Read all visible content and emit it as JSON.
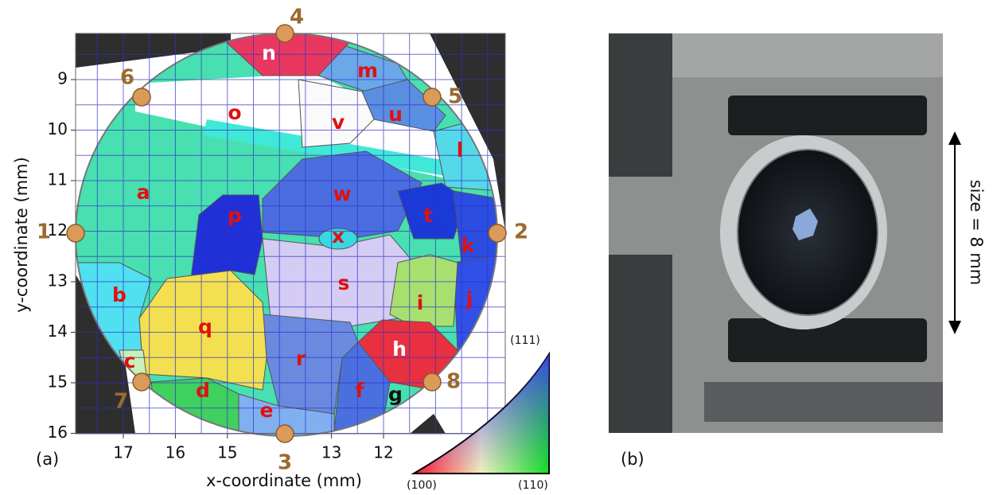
{
  "panel_a": {
    "label": "(a)",
    "y_axis_label": "y-coordinate (mm)",
    "x_axis_label": "x-coordinate (mm)",
    "yticks": [
      9,
      10,
      11,
      12,
      13,
      14,
      15,
      16
    ],
    "xticks": [
      17,
      16,
      15,
      13,
      12
    ],
    "points": [
      "1",
      "2",
      "3",
      "4",
      "5",
      "6",
      "7",
      "8"
    ],
    "grains": [
      "n",
      "m",
      "o",
      "v",
      "u",
      "l",
      "a",
      "w",
      "t",
      "k",
      "p",
      "x",
      "s",
      "i",
      "j",
      "b",
      "q",
      "r",
      "h",
      "c",
      "f",
      "g",
      "d",
      "e"
    ],
    "ipf_legend": {
      "top": "(111)",
      "left": "(100)",
      "right": "(110)"
    }
  },
  "panel_b": {
    "label": "(b)",
    "scale": "size = 8 mm"
  }
}
